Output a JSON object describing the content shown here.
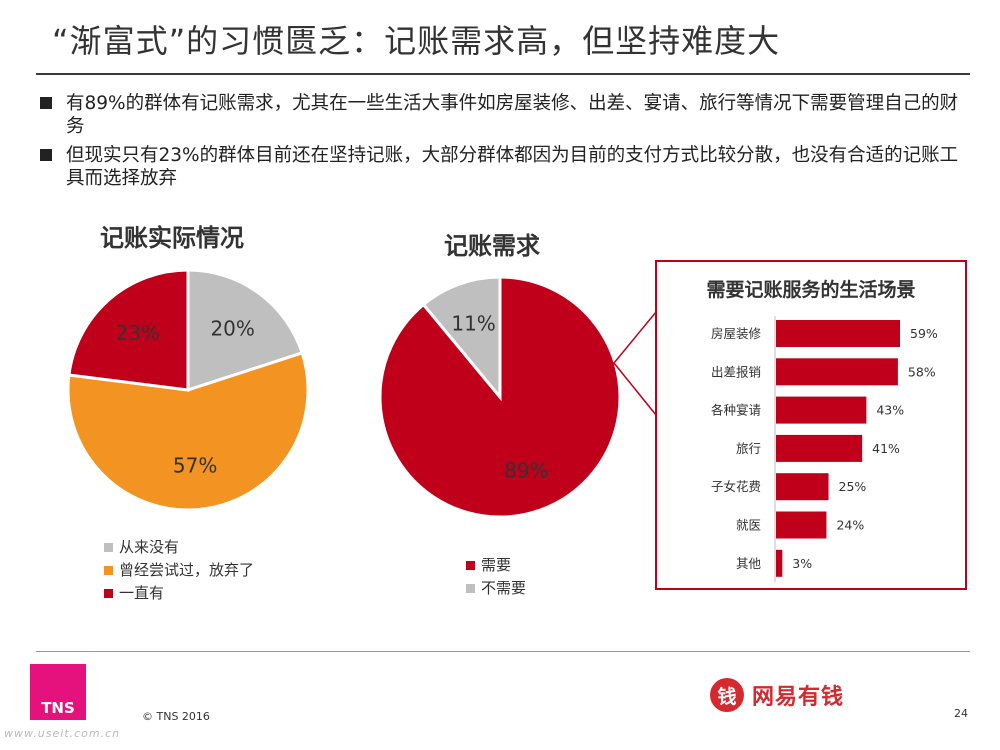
{
  "title": "“渐富式”的习惯匮乏：记账需求高，但坚持难度大",
  "bullets": [
    "有89%的群体有记账需求，尤其在一些生活大事件如房屋装修、出差、宴请、旅行等情况下需要管理自己的财务",
    "但现实只有23%的群体目前还在坚持记账，大部分群体都因为目前的支付方式比较分散，也没有合适的记账工具而选择放弃"
  ],
  "chart_data": [
    {
      "type": "pie",
      "title": "记账实际情况",
      "slices": [
        {
          "label": "从来没有",
          "value": 20,
          "display": "20%",
          "color": "#bfbfbf"
        },
        {
          "label": "曾经尝试过，放弃了",
          "value": 57,
          "display": "57%",
          "color": "#f39322"
        },
        {
          "label": "一直有",
          "value": 23,
          "display": "23%",
          "color": "#c0001a"
        }
      ]
    },
    {
      "type": "pie",
      "title": "记账需求",
      "slices": [
        {
          "label": "需要",
          "value": 89,
          "display": "89%",
          "color": "#c0001a"
        },
        {
          "label": "不需要",
          "value": 11,
          "display": "11%",
          "color": "#bfbfbf"
        }
      ]
    },
    {
      "type": "bar",
      "orientation": "horizontal",
      "title": "需要记账服务的生活场景",
      "categories": [
        "房屋装修",
        "出差报销",
        "各种宴请",
        "旅行",
        "子女花费",
        "就医",
        "其他"
      ],
      "values": [
        59,
        58,
        43,
        41,
        25,
        24,
        3
      ],
      "value_labels": [
        "59%",
        "58%",
        "43%",
        "41%",
        "25%",
        "24%",
        "3%"
      ],
      "color": "#c0001a"
    }
  ],
  "footer": {
    "logo": "TNS",
    "copyright": "© TNS 2016",
    "brand_mark": "钱",
    "brand_name": "网易有钱",
    "page": "24",
    "watermark": "www.useit.com.cn"
  }
}
